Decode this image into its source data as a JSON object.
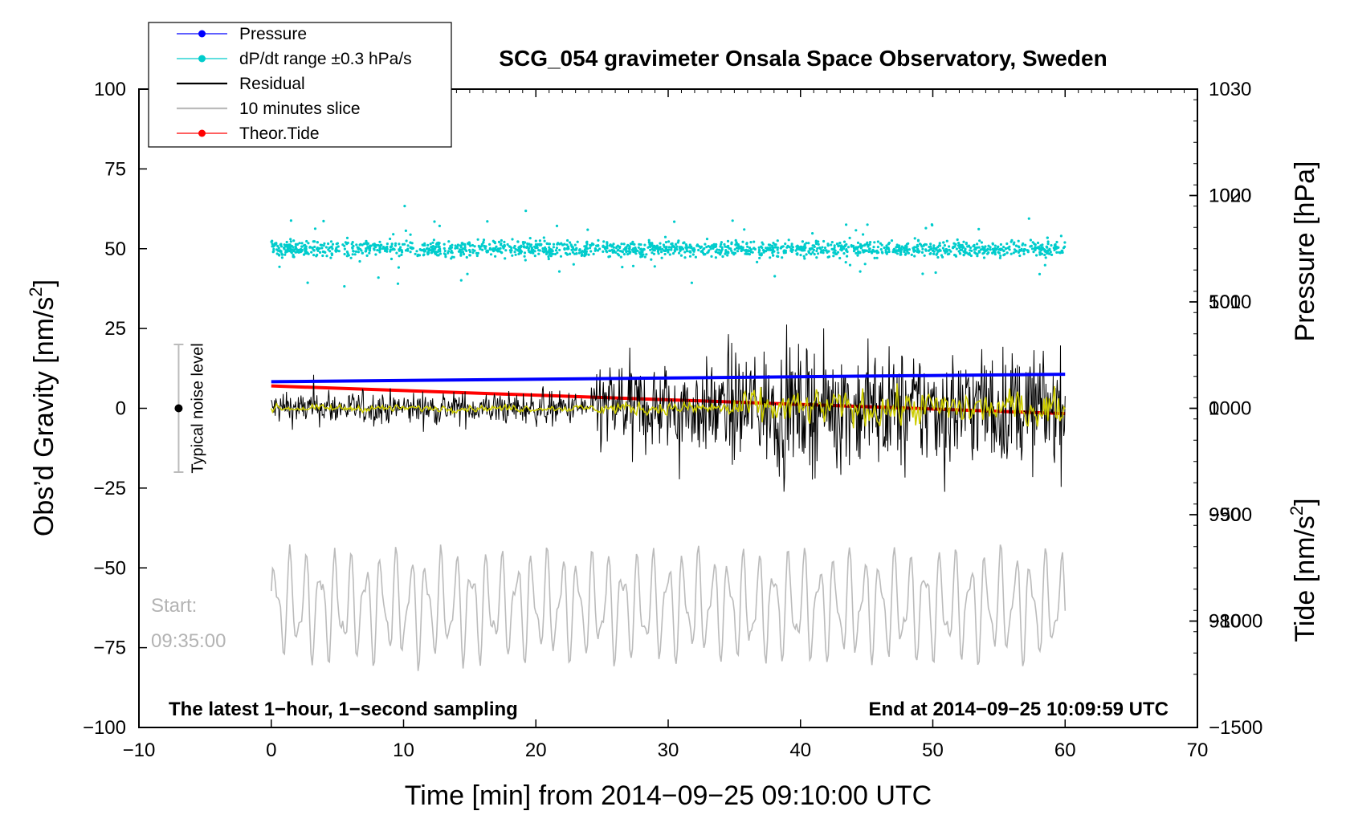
{
  "chart_data": {
    "type": "line",
    "title": "SCG_054 gravimeter Onsala Space Observatory, Sweden",
    "xlabel": "Time [min] from 2014−09−25 09:10:00 UTC",
    "ylabel_left": "Obs’d Gravity [nm/s",
    "ylabel_left_sup": "2",
    "ylabel_left_end": "]",
    "ylabel_right_pressure": "Pressure [hPa]",
    "ylabel_right_tide": "Tide [nm/s",
    "ylabel_right_tide_sup": "2",
    "ylabel_right_tide_end": "]",
    "xlim": [
      -10,
      70
    ],
    "ylim_left": [
      -100,
      100
    ],
    "pressure_lim": [
      970,
      1030
    ],
    "tide_lim": [
      -1500,
      1500
    ],
    "x_ticks": [
      "−10",
      "0",
      "10",
      "20",
      "30",
      "40",
      "50",
      "60",
      "70"
    ],
    "x_tick_values": [
      -10,
      0,
      10,
      20,
      30,
      40,
      50,
      60,
      70
    ],
    "y_left_ticks": [
      "100",
      "75",
      "50",
      "25",
      "0",
      "−25",
      "−50",
      "−75",
      "−100"
    ],
    "y_left_tick_values": [
      100,
      75,
      50,
      25,
      0,
      -25,
      -50,
      -75,
      -100
    ],
    "pressure_ticks": [
      "1030",
      "1020",
      "1010",
      "1000",
      "990",
      "980"
    ],
    "pressure_tick_values": [
      1030,
      1020,
      1010,
      1000,
      990,
      980
    ],
    "tide_ticks": [
      "1000",
      "500",
      "0",
      "−500",
      "−1000",
      "−1500"
    ],
    "tide_tick_values": [
      1000,
      500,
      0,
      -500,
      -1000,
      -1500
    ],
    "legend": [
      {
        "label": "Pressure",
        "color": "#0000ff",
        "style": "line-dot"
      },
      {
        "label": "dP/dt range ±0.3 hPa/s",
        "color": "#00cccc",
        "style": "line-dot"
      },
      {
        "label": "Residual",
        "color": "#000000",
        "style": "line"
      },
      {
        "label": "10 minutes slice",
        "color": "#bbbbbb",
        "style": "line"
      },
      {
        "label": "Theor.Tide",
        "color": "#ff0000",
        "style": "line-dot"
      }
    ],
    "series": [
      {
        "name": "Pressure",
        "axis": "pressure",
        "color": "#0000ff",
        "x": [
          0,
          60
        ],
        "values": [
          1002.5,
          1003.2
        ]
      },
      {
        "name": "dP/dt range ±0.3 hPa/s",
        "axis": "left",
        "color": "#00cccc",
        "x_range": [
          0,
          60
        ],
        "center": 50,
        "typical_spread": 3,
        "max_spread": 30
      },
      {
        "name": "Residual",
        "axis": "left",
        "color": "#000000",
        "x_range": [
          0,
          60
        ],
        "segments": [
          {
            "x": [
              0,
              24.5
            ],
            "amplitude": 8
          },
          {
            "x": [
              24.5,
              34.5
            ],
            "amplitude": 22
          },
          {
            "x": [
              34.5,
              60
            ],
            "amplitude": 28
          }
        ]
      },
      {
        "name": "Residual (smoothed)",
        "axis": "left",
        "color": "#cccc00",
        "x_range": [
          0,
          60
        ],
        "segments": [
          {
            "x": [
              0,
              24.5
            ],
            "amplitude": 1.5
          },
          {
            "x": [
              24.5,
              34.5
            ],
            "amplitude": 3
          },
          {
            "x": [
              34.5,
              60
            ],
            "amplitude": 8
          }
        ]
      },
      {
        "name": "10 minutes slice",
        "axis": "left",
        "color": "#bbbbbb",
        "x_range": [
          0,
          60
        ],
        "center": -62,
        "amplitude": 18
      },
      {
        "name": "Theor.Tide",
        "axis": "tide",
        "color": "#ff0000",
        "x": [
          0,
          60
        ],
        "values": [
          105,
          -25
        ]
      }
    ],
    "noise_level": {
      "x": -7,
      "center": 0,
      "range": [
        -20,
        20
      ],
      "label": "Typical noise level"
    },
    "annotations": {
      "bottom_left": "The latest 1−hour, 1−second sampling",
      "bottom_right": "End at 2014−09−25 10:09:59 UTC",
      "start_label": "Start:",
      "start_time": "09:35:00"
    }
  }
}
